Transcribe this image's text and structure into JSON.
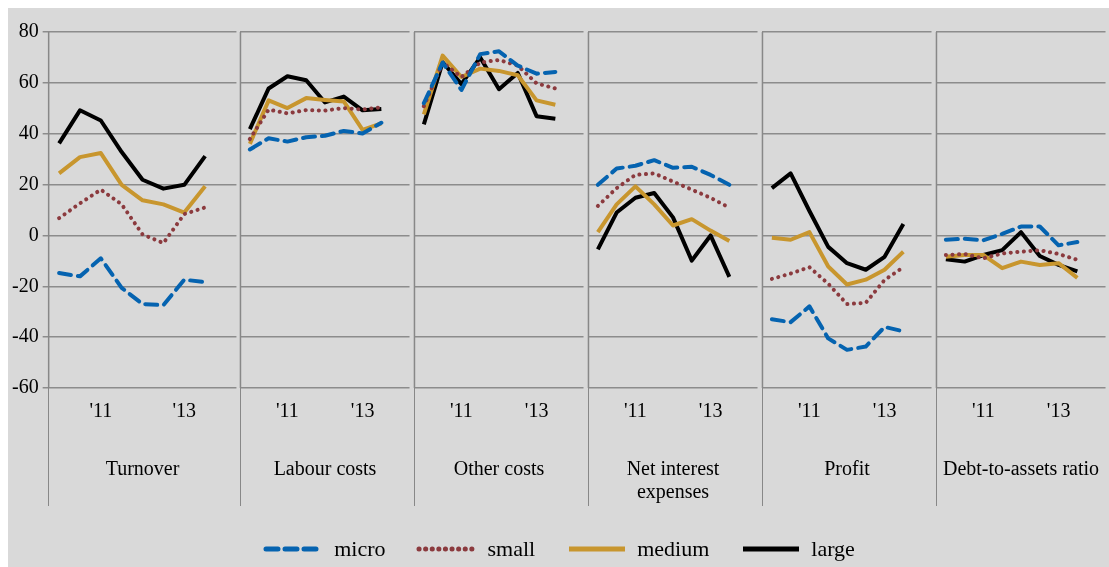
{
  "chart_data": [
    {
      "type": "line",
      "xlabel": "Turnover",
      "categories": [
        null,
        null,
        "'11",
        null,
        null,
        null,
        "'13",
        null,
        null
      ],
      "ylim": [
        -60,
        80
      ],
      "yticks": [
        -60,
        -40,
        -20,
        0,
        20,
        40,
        60,
        80
      ],
      "grid": "y",
      "marker": "none",
      "legend": "bottom",
      "series": [
        {
          "name": "micro",
          "color": "#0563b0",
          "line_style": "dashed",
          "values": [
            -14.8,
            -16.1,
            -9,
            -20.6,
            -27,
            -27.4,
            -17.4,
            -18.4,
            null
          ]
        },
        {
          "name": "small",
          "color": "#8b3a3e",
          "line_style": "dotted",
          "values": [
            6.8,
            12.6,
            18,
            12.2,
            0.4,
            -3,
            8.4,
            11,
            null
          ]
        },
        {
          "name": "medium",
          "color": "#c8962e",
          "line_style": "solid",
          "values": [
            24.4,
            30.8,
            32.4,
            19.9,
            13.8,
            12.2,
            9,
            19.3,
            null
          ]
        },
        {
          "name": "large",
          "color": "#000000",
          "line_style": "solid",
          "values": [
            36.2,
            49.2,
            45.2,
            32.8,
            21.9,
            18.4,
            19.9,
            31.2,
            null
          ]
        }
      ]
    },
    {
      "type": "line",
      "xlabel": "Labour costs",
      "categories": [
        null,
        null,
        "'11",
        null,
        null,
        null,
        "'13",
        null,
        null
      ],
      "ylim": [
        -60,
        80
      ],
      "yticks": [
        -60,
        -40,
        -20,
        0,
        20,
        40,
        60,
        80
      ],
      "grid": "y",
      "marker": "none",
      "tick_labels": "x",
      "series": [
        {
          "color": "#0563b0",
          "line_style": "dashed",
          "values": [
            33.8,
            38.2,
            36.9,
            38.6,
            39.2,
            41.1,
            40.1,
            44.3,
            null
          ]
        },
        {
          "color": "#8b3a3e",
          "line_style": "dotted",
          "values": [
            37.9,
            49.5,
            48,
            49.3,
            49.1,
            50.1,
            49.5,
            50.4,
            null
          ]
        },
        {
          "color": "#c8962e",
          "line_style": "solid",
          "values": [
            36,
            53.1,
            50.1,
            54,
            53.3,
            52.7,
            41.5,
            44.1,
            null
          ]
        },
        {
          "color": "#000000",
          "line_style": "solid",
          "values": [
            41.8,
            57.8,
            62.6,
            61,
            52.3,
            54.6,
            49.2,
            49.7,
            null
          ]
        }
      ]
    },
    {
      "type": "line",
      "xlabel": "Other costs",
      "categories": [
        null,
        null,
        "'11",
        null,
        null,
        null,
        "'13",
        null,
        null
      ],
      "ylim": [
        -60,
        80
      ],
      "yticks": [
        -60,
        -40,
        -20,
        0,
        20,
        40,
        60,
        80
      ],
      "grid": "y",
      "marker": "none",
      "tick_labels": "x",
      "series": [
        {
          "color": "#0563b0",
          "line_style": "dashed",
          "values": [
            52,
            68,
            57.2,
            71.3,
            72.4,
            66.8,
            63.6,
            64.3,
            null
          ]
        },
        {
          "color": "#8b3a3e",
          "line_style": "dotted",
          "values": [
            50.8,
            68,
            62.3,
            68,
            69,
            66.8,
            59.8,
            57.8,
            null
          ]
        },
        {
          "color": "#c8962e",
          "line_style": "solid",
          "values": [
            47.6,
            70.7,
            62.3,
            65.6,
            64.7,
            63,
            53.1,
            51.4,
            null
          ]
        },
        {
          "color": "#000000",
          "line_style": "solid",
          "values": [
            43.7,
            68.1,
            59.5,
            70,
            57.5,
            63.9,
            46.9,
            45.9,
            null
          ]
        }
      ]
    },
    {
      "type": "line",
      "xlabel": "Net interest expenses",
      "categories": [
        null,
        null,
        "'11",
        null,
        null,
        null,
        "'13",
        null,
        null
      ],
      "ylim": [
        -60,
        80
      ],
      "yticks": [
        -60,
        -40,
        -20,
        0,
        20,
        40,
        60,
        80
      ],
      "grid": "y",
      "marker": "none",
      "tick_labels": "x",
      "series": [
        {
          "color": "#0563b0",
          "line_style": "dashed",
          "values": [
            19.9,
            26.3,
            27.4,
            29.6,
            26.6,
            27,
            23.8,
            19.9,
            null
          ]
        },
        {
          "color": "#8b3a3e",
          "line_style": "dotted",
          "values": [
            11.6,
            18.6,
            23.8,
            24.4,
            21.2,
            18,
            14.8,
            10.9,
            null
          ]
        },
        {
          "color": "#c8962e",
          "line_style": "solid",
          "values": [
            1.3,
            12.2,
            19.3,
            12.2,
            3.9,
            6.4,
            1.9,
            -2.2,
            null
          ]
        },
        {
          "color": "#000000",
          "line_style": "solid",
          "values": [
            -5.5,
            9,
            14.8,
            16.7,
            7.1,
            -9.9,
            0,
            -16.3,
            null
          ]
        }
      ]
    },
    {
      "type": "line",
      "xlabel": "Profit",
      "categories": [
        null,
        null,
        "'11",
        null,
        null,
        null,
        "'13",
        null,
        null
      ],
      "ylim": [
        -60,
        80
      ],
      "yticks": [
        -60,
        -40,
        -20,
        0,
        20,
        40,
        60,
        80
      ],
      "grid": "y",
      "marker": "none",
      "tick_labels": "x",
      "series": [
        {
          "color": "#0563b0",
          "line_style": "dashed",
          "values": [
            -33,
            -34.1,
            -27.9,
            -40.5,
            -45,
            -43.7,
            -36,
            -37.7,
            null
          ]
        },
        {
          "color": "#8b3a3e",
          "line_style": "dotted",
          "values": [
            -17.1,
            -15,
            -12.5,
            -19,
            -27,
            -26.5,
            -17.5,
            -12.5,
            null
          ]
        },
        {
          "color": "#c8962e",
          "line_style": "solid",
          "values": [
            -0.9,
            -1.7,
            1.3,
            -12.2,
            -19.3,
            -17.4,
            -13.5,
            -6.4,
            null
          ]
        },
        {
          "color": "#000000",
          "line_style": "solid",
          "values": [
            18.6,
            24.4,
            9.6,
            -4.5,
            -10.9,
            -13.5,
            -8.4,
            4.5,
            null
          ]
        }
      ]
    },
    {
      "type": "line",
      "xlabel": "Debt-to-assets ratio",
      "categories": [
        null,
        null,
        "'11",
        null,
        null,
        null,
        "'13",
        null,
        null
      ],
      "ylim": [
        -60,
        80
      ],
      "yticks": [
        -60,
        -40,
        -20,
        0,
        20,
        40,
        60,
        80
      ],
      "grid": "y",
      "marker": "none",
      "tick_labels": "x",
      "series": [
        {
          "color": "#0563b0",
          "line_style": "dashed",
          "values": [
            -1.7,
            -1.3,
            -1.9,
            0.6,
            3.5,
            3.5,
            -3.9,
            -2.6,
            null
          ]
        },
        {
          "color": "#8b3a3e",
          "line_style": "dotted",
          "values": [
            -7.7,
            -7.3,
            -9,
            -7.1,
            -6.4,
            -5.8,
            -7.3,
            -9.6,
            null
          ]
        },
        {
          "color": "#c8962e",
          "line_style": "solid",
          "values": [
            -8.4,
            -7.7,
            -7.7,
            -12.9,
            -10.3,
            -11.6,
            -10.9,
            -16.7,
            null
          ]
        },
        {
          "color": "#000000",
          "line_style": "solid",
          "values": [
            -9.4,
            -10.3,
            -7.7,
            -5.8,
            1.3,
            -8.1,
            -11.6,
            -14.1,
            null
          ]
        }
      ]
    }
  ]
}
